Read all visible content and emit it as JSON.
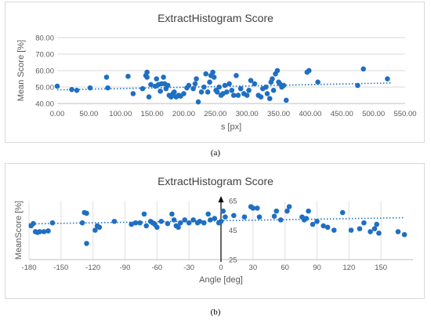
{
  "chart_data": [
    {
      "type": "scatter",
      "title": "ExtractHistogram Score",
      "xlabel": "s [px]",
      "ylabel": "Mean Score [%]",
      "xlim": [
        0,
        550
      ],
      "ylim": [
        40,
        80
      ],
      "xticks": [
        "0.00",
        "50.00",
        "100.00",
        "150.00",
        "200.00",
        "250.00",
        "300.00",
        "350.00",
        "400.00",
        "450.00",
        "500.00",
        "550.00"
      ],
      "yticks": [
        "40.00",
        "50.00",
        "60.00",
        "70.00",
        "80.00"
      ],
      "grid": "horizontal",
      "trendline": {
        "style": "dotted-linear",
        "y_at_xmin": 48.3,
        "y_at_xmax": 52.5
      },
      "marker_color": "#1f6fc2",
      "points": [
        [
          0,
          50.5
        ],
        [
          23,
          48.5
        ],
        [
          31,
          48
        ],
        [
          52,
          49.5
        ],
        [
          78,
          56
        ],
        [
          80,
          49.5
        ],
        [
          112,
          56.5
        ],
        [
          120,
          46
        ],
        [
          135,
          49
        ],
        [
          140,
          57
        ],
        [
          142,
          59
        ],
        [
          142,
          56
        ],
        [
          145,
          44
        ],
        [
          148,
          51.5
        ],
        [
          155,
          50.5
        ],
        [
          157,
          55
        ],
        [
          160,
          51.5
        ],
        [
          163,
          47.5
        ],
        [
          165,
          52
        ],
        [
          168,
          56
        ],
        [
          170,
          52
        ],
        [
          172,
          49
        ],
        [
          175,
          51
        ],
        [
          177,
          45
        ],
        [
          180,
          44
        ],
        [
          183,
          46
        ],
        [
          185,
          47
        ],
        [
          188,
          44
        ],
        [
          192,
          45
        ],
        [
          195,
          44.5
        ],
        [
          200,
          46
        ],
        [
          205,
          49.5
        ],
        [
          208,
          51
        ],
        [
          215,
          49
        ],
        [
          218,
          52
        ],
        [
          220,
          55
        ],
        [
          223,
          41
        ],
        [
          228,
          47
        ],
        [
          232,
          50
        ],
        [
          235,
          58
        ],
        [
          238,
          47
        ],
        [
          241,
          53
        ],
        [
          243,
          57
        ],
        [
          246,
          59
        ],
        [
          248,
          56
        ],
        [
          251,
          48
        ],
        [
          253,
          47
        ],
        [
          256,
          50
        ],
        [
          259,
          45
        ],
        [
          262,
          46
        ],
        [
          265,
          51
        ],
        [
          268,
          47
        ],
        [
          272,
          52
        ],
        [
          276,
          48
        ],
        [
          279,
          45
        ],
        [
          283,
          57
        ],
        [
          286,
          45
        ],
        [
          290,
          49
        ],
        [
          295,
          46
        ],
        [
          300,
          45
        ],
        [
          303,
          48
        ],
        [
          306,
          54
        ],
        [
          312,
          52
        ],
        [
          318,
          45
        ],
        [
          322,
          44
        ],
        [
          325,
          49
        ],
        [
          330,
          50
        ],
        [
          332,
          46
        ],
        [
          336,
          43
        ],
        [
          338,
          53
        ],
        [
          340,
          55
        ],
        [
          342,
          48
        ],
        [
          345,
          58
        ],
        [
          348,
          60
        ],
        [
          350,
          53
        ],
        [
          352,
          52
        ],
        [
          355,
          50
        ],
        [
          358,
          51
        ],
        [
          362,
          42
        ],
        [
          395,
          59
        ],
        [
          398,
          60
        ],
        [
          412,
          53
        ],
        [
          475,
          51
        ],
        [
          484,
          61
        ],
        [
          522,
          55
        ]
      ]
    },
    {
      "type": "scatter",
      "title": "ExtractHistogram Score",
      "xlabel": "Angle [deg]",
      "ylabel": "MeanScore [%]",
      "xlim": [
        -180,
        180
      ],
      "ylim": [
        25,
        65
      ],
      "xticks": [
        "-180",
        "-150",
        "-120",
        "-90",
        "-60",
        "-30",
        "0",
        "30",
        "60",
        "90",
        "120",
        "150"
      ],
      "yticks": [
        "25",
        "45",
        "65"
      ],
      "grid": "vertical",
      "trendline": {
        "style": "dotted-linear",
        "y_at_xmin": 49.3,
        "y_at_xmax": 53.5
      },
      "marker_color": "#1f6fc2",
      "points": [
        [
          -178,
          48
        ],
        [
          -176,
          49.5
        ],
        [
          -174,
          44
        ],
        [
          -172,
          43.5
        ],
        [
          -170,
          44
        ],
        [
          -166,
          44
        ],
        [
          -162,
          44.5
        ],
        [
          -158,
          50
        ],
        [
          -130,
          50
        ],
        [
          -128,
          57
        ],
        [
          -126,
          56.5
        ],
        [
          -126,
          36
        ],
        [
          -118,
          45
        ],
        [
          -116,
          48
        ],
        [
          -114,
          47
        ],
        [
          -100,
          51
        ],
        [
          -84,
          49
        ],
        [
          -80,
          50
        ],
        [
          -76,
          50
        ],
        [
          -72,
          56
        ],
        [
          -70,
          48
        ],
        [
          -66,
          51
        ],
        [
          -64,
          50
        ],
        [
          -62,
          49
        ],
        [
          -60,
          47
        ],
        [
          -56,
          51
        ],
        [
          -50,
          49.5
        ],
        [
          -46,
          56
        ],
        [
          -44,
          52
        ],
        [
          -42,
          48
        ],
        [
          -40,
          47
        ],
        [
          -38,
          50
        ],
        [
          -34,
          52
        ],
        [
          -30,
          50
        ],
        [
          -26,
          52
        ],
        [
          -22,
          50
        ],
        [
          -20,
          51
        ],
        [
          -16,
          50
        ],
        [
          -12,
          56
        ],
        [
          -10,
          52
        ],
        [
          -6,
          53
        ],
        [
          -2,
          50
        ],
        [
          0,
          51
        ],
        [
          2,
          58
        ],
        [
          4,
          54
        ],
        [
          12,
          55
        ],
        [
          22,
          54
        ],
        [
          28,
          61
        ],
        [
          30,
          60
        ],
        [
          34,
          60
        ],
        [
          36,
          54
        ],
        [
          50,
          54.5
        ],
        [
          52,
          58
        ],
        [
          56,
          52
        ],
        [
          62,
          58
        ],
        [
          64,
          61
        ],
        [
          76,
          54
        ],
        [
          78,
          52
        ],
        [
          80,
          53
        ],
        [
          82,
          58
        ],
        [
          86,
          49
        ],
        [
          90,
          51
        ],
        [
          96,
          48
        ],
        [
          100,
          47
        ],
        [
          106,
          45
        ],
        [
          114,
          57
        ],
        [
          122,
          45
        ],
        [
          130,
          46
        ],
        [
          134,
          50
        ],
        [
          140,
          44
        ],
        [
          144,
          46
        ],
        [
          146,
          49
        ],
        [
          148,
          43
        ],
        [
          166,
          44
        ],
        [
          172,
          42
        ]
      ]
    }
  ],
  "captions": {
    "a": "(a)",
    "b": "(b)"
  }
}
